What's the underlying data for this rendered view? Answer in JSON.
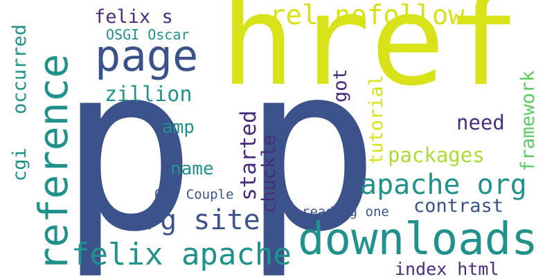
{
  "palette": {
    "indigo": "#3b528b",
    "teal": "#21918c",
    "green": "#5ec962",
    "yellow": "#d8e219",
    "purple": "#472d7b",
    "lime": "#addc30"
  },
  "words": [
    {
      "text": "href",
      "color": "#d8e219",
      "orientation": "horizontal"
    },
    {
      "text": "p",
      "color": "#3b528b",
      "orientation": "horizontal"
    },
    {
      "text": "p",
      "color": "#3b528b",
      "orientation": "horizontal"
    },
    {
      "text": "reference",
      "color": "#21918c",
      "orientation": "vertical"
    },
    {
      "text": "page",
      "color": "#3b528b",
      "orientation": "horizontal"
    },
    {
      "text": "downloads",
      "color": "#21918c",
      "orientation": "horizontal"
    },
    {
      "text": "felix apache",
      "color": "#21918c",
      "orientation": "horizontal"
    },
    {
      "text": "rel nofollow",
      "color": "#d8e219",
      "orientation": "horizontal"
    },
    {
      "text": "apache org",
      "color": "#21918c",
      "orientation": "horizontal"
    },
    {
      "text": "org site",
      "color": "#3b528b",
      "orientation": "horizontal"
    },
    {
      "text": "felix s",
      "color": "#472d7b",
      "orientation": "horizontal"
    },
    {
      "text": "OSGI Oscar",
      "color": "#21918c",
      "orientation": "horizontal"
    },
    {
      "text": "zillion",
      "color": "#21918c",
      "orientation": "horizontal"
    },
    {
      "text": "occurred",
      "color": "#21918c",
      "orientation": "vertical"
    },
    {
      "text": "amp",
      "color": "#21918c",
      "orientation": "horizontal"
    },
    {
      "text": "name",
      "color": "#21918c",
      "orientation": "horizontal"
    },
    {
      "text": "cgi",
      "color": "#21918c",
      "orientation": "vertical"
    },
    {
      "text": "Odd Couple",
      "color": "#3b528b",
      "orientation": "horizontal"
    },
    {
      "text": "started",
      "color": "#472d7b",
      "orientation": "vertical"
    },
    {
      "text": "chuckle",
      "color": "#472d7b",
      "orientation": "vertical"
    },
    {
      "text": "got",
      "color": "#472d7b",
      "orientation": "vertical"
    },
    {
      "text": "tutorial",
      "color": "#d8e219",
      "orientation": "vertical"
    },
    {
      "text": "packages",
      "color": "#addc30",
      "orientation": "horizontal"
    },
    {
      "text": "need",
      "color": "#472d7b",
      "orientation": "horizontal"
    },
    {
      "text": "framework",
      "color": "#5ec962",
      "orientation": "vertical"
    },
    {
      "text": "contrast",
      "color": "#3b528b",
      "orientation": "horizontal"
    },
    {
      "text": "reading one",
      "color": "#3b528b",
      "orientation": "horizontal"
    },
    {
      "text": "index html",
      "color": "#472d7b",
      "orientation": "horizontal"
    }
  ]
}
